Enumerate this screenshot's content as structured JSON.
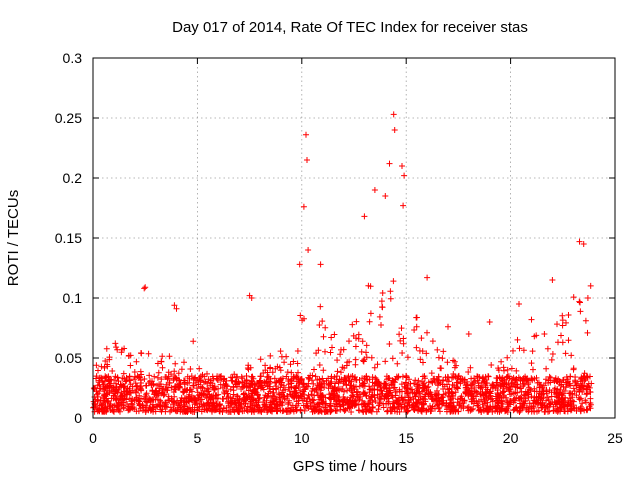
{
  "chart_data": {
    "type": "scatter",
    "title": "Day 017 of 2014, Rate Of TEC Index for receiver stas",
    "xlabel": "GPS time / hours",
    "ylabel": "ROTI / TECUs",
    "xlim": [
      0,
      25
    ],
    "ylim": [
      0,
      0.3
    ],
    "xticks": [
      0,
      5,
      10,
      15,
      20,
      25
    ],
    "yticks": [
      0,
      0.05,
      0.1,
      0.15,
      0.2,
      0.25,
      0.3
    ],
    "xtick_labels": [
      "0",
      "5",
      "10",
      "15",
      "20",
      "25"
    ],
    "ytick_labels": [
      "0",
      "0.05",
      "0.1",
      "0.15",
      "0.2",
      "0.25",
      "0.3"
    ],
    "grid": true,
    "marker": "+",
    "color": "#ff0000",
    "series": [
      {
        "name": "stas",
        "x_range": [
          0,
          23.9
        ],
        "baseline_band": [
          0.005,
          0.035
        ],
        "notable_points": [
          {
            "x": 2.45,
            "y": 0.108
          },
          {
            "x": 2.5,
            "y": 0.109
          },
          {
            "x": 3.9,
            "y": 0.094
          },
          {
            "x": 4.0,
            "y": 0.091
          },
          {
            "x": 4.8,
            "y": 0.064
          },
          {
            "x": 7.5,
            "y": 0.102
          },
          {
            "x": 7.6,
            "y": 0.1
          },
          {
            "x": 9.9,
            "y": 0.128
          },
          {
            "x": 10.1,
            "y": 0.176
          },
          {
            "x": 10.2,
            "y": 0.236
          },
          {
            "x": 10.25,
            "y": 0.215
          },
          {
            "x": 10.3,
            "y": 0.14
          },
          {
            "x": 10.9,
            "y": 0.128
          },
          {
            "x": 13.0,
            "y": 0.168
          },
          {
            "x": 13.5,
            "y": 0.19
          },
          {
            "x": 14.0,
            "y": 0.185
          },
          {
            "x": 14.2,
            "y": 0.212
          },
          {
            "x": 14.4,
            "y": 0.253
          },
          {
            "x": 14.45,
            "y": 0.24
          },
          {
            "x": 14.8,
            "y": 0.21
          },
          {
            "x": 14.9,
            "y": 0.202
          },
          {
            "x": 14.85,
            "y": 0.177
          },
          {
            "x": 16.0,
            "y": 0.117
          },
          {
            "x": 17.0,
            "y": 0.076
          },
          {
            "x": 18.0,
            "y": 0.07
          },
          {
            "x": 19.0,
            "y": 0.08
          },
          {
            "x": 20.4,
            "y": 0.095
          },
          {
            "x": 21.0,
            "y": 0.082
          },
          {
            "x": 22.0,
            "y": 0.115
          },
          {
            "x": 22.5,
            "y": 0.063
          },
          {
            "x": 23.3,
            "y": 0.147
          },
          {
            "x": 23.5,
            "y": 0.145
          },
          {
            "x": 23.7,
            "y": 0.1
          }
        ],
        "activity_profile": [
          {
            "x": 0,
            "y": 0.04
          },
          {
            "x": 1,
            "y": 0.06
          },
          {
            "x": 2,
            "y": 0.05
          },
          {
            "x": 3,
            "y": 0.05
          },
          {
            "x": 4,
            "y": 0.045
          },
          {
            "x": 5,
            "y": 0.04
          },
          {
            "x": 6,
            "y": 0.03
          },
          {
            "x": 7,
            "y": 0.035
          },
          {
            "x": 8,
            "y": 0.045
          },
          {
            "x": 9,
            "y": 0.055
          },
          {
            "x": 10,
            "y": 0.1
          },
          {
            "x": 11,
            "y": 0.09
          },
          {
            "x": 12,
            "y": 0.07
          },
          {
            "x": 13,
            "y": 0.11
          },
          {
            "x": 14,
            "y": 0.13
          },
          {
            "x": 15,
            "y": 0.1
          },
          {
            "x": 16,
            "y": 0.07
          },
          {
            "x": 17,
            "y": 0.045
          },
          {
            "x": 18,
            "y": 0.04
          },
          {
            "x": 19,
            "y": 0.04
          },
          {
            "x": 20,
            "y": 0.06
          },
          {
            "x": 21,
            "y": 0.065
          },
          {
            "x": 22,
            "y": 0.07
          },
          {
            "x": 23,
            "y": 0.1
          },
          {
            "x": 23.9,
            "y": 0.12
          }
        ]
      }
    ]
  }
}
